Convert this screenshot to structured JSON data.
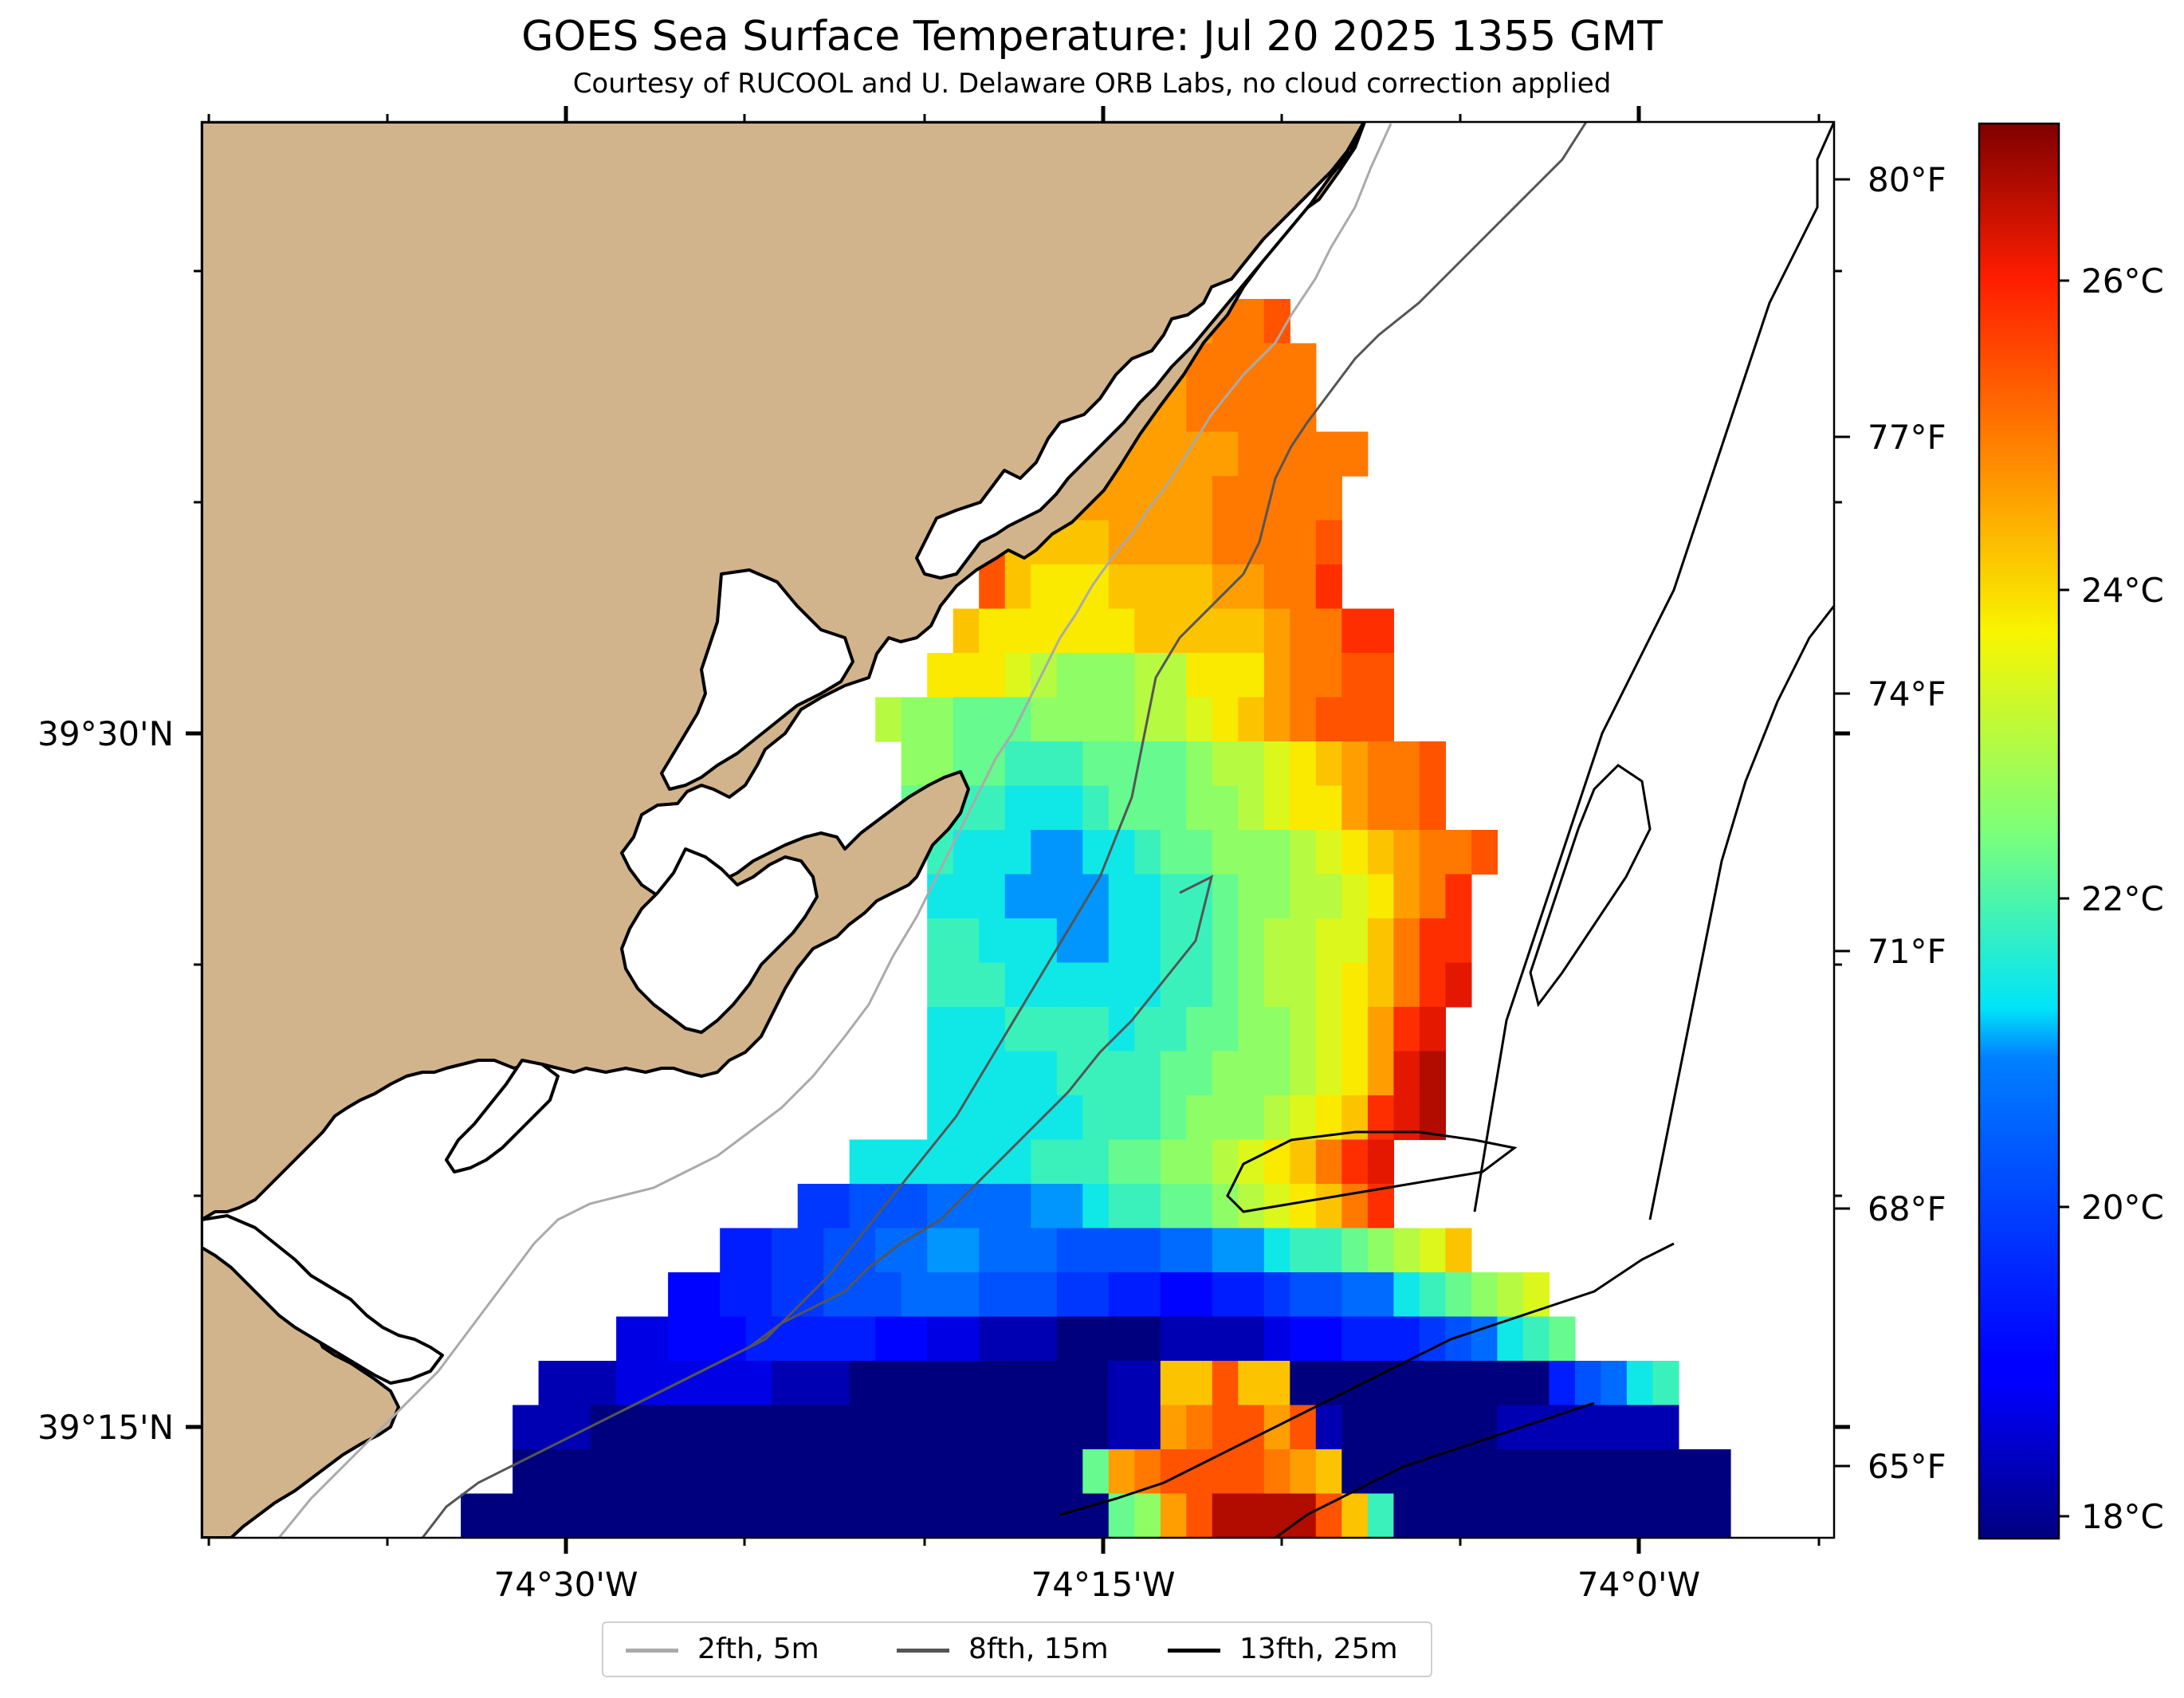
{
  "title": "GOES Sea Surface Temperature: Jul 20 2025 1355 GMT",
  "subtitle": "Courtesy of RUCOOL and U. Delaware ORB Labs, no cloud correction applied",
  "axes": {
    "x_ticks": [
      "74°30'W",
      "74°15'W",
      "74°0'W"
    ],
    "y_ticks": [
      "39°30'N",
      "39°15'N"
    ]
  },
  "colorbar": {
    "celsius_ticks": [
      "26°C",
      "24°C",
      "22°C",
      "20°C",
      "18°C"
    ],
    "fahrenheit_ticks": [
      "80°F",
      "77°F",
      "74°F",
      "71°F",
      "68°F",
      "65°F"
    ],
    "colormap": "jet",
    "range_c": [
      17.9,
      27.4
    ]
  },
  "legend": [
    {
      "label": "2fth, 5m",
      "color": "#aaaaaa"
    },
    {
      "label": "8fth, 15m",
      "color": "#555555"
    },
    {
      "label": "13fth, 25m",
      "color": "#000000"
    }
  ],
  "colors": {
    "land": "#d2b48c",
    "coastline": "#000000",
    "no_data": "#ffffff"
  },
  "sst_grid_c": [
    "............................................................",
    "............................................................",
    ".................................rr..........................",
    "..................................qrr........................",
    "...................................qrrrsst....................",
    "...................................qrrsssss...................",
    "..................................@orrsssss...................",
    ".................................qrrrrrrsssss................",
    "..............................Xqqrrrrrrsssss..................",
    "..............................tqqqqrrrrsssst..................",
    "..............................tqpppqqqqrrssu..................",
    "...............qtr...........qppppppqqqqqrssuu................",
    "...............mnm..........ppponmmmnnppprsstt................",
    "...............kl.........nmmlllmmmmnnopqrsttt................",
    "...........................mmllkkkllllmnnopqrsst..............",
    "...........................lkkkjjjklllmmnopprsst..............",
    "............................kjjjiijjkllmmmnopqrsst............",
    "............................jjjiiiijjkklmmnnoprsu.............",
    "............................kkjjjiijjkklmnnooqsuu.............",
    "............................kkkjjjjjjkklmnnopqsuv.............",
    "............................jjjkkkkjkkllmmnopruv..............",
    "............................jjjjjkkkkllmmmnoprvw..............",
    "............................jjjjjjkkklmmmnopquvw..............",
    ".........................jjjjjjjkkkllmmnopqsuv................",
    ".......................ffggghhhhiijkkllmnopqsu................",
    "....................eeffgghhiihhhgggghhiijkklmnoq..............",
    "..................ddeeffggghhhgggffeeddeefgghhjklmno...........",
    "................ccdddeeeeeddccbbbaaaabbbbcddeeefghjkl..........",
    ".............bbbccccccbbbaaaaaaaaaabbqqtqqaaaaaaaaaaeghjk......",
    "............bbbaaaaaaaaaaaaaaaaaaaabbrsttrtbaaaaaabbbbbbb......",
    "............aaaaaaaaaaaaaaaaaaaaaalrsttttsrqaaaaaaaaaaaaaaa....",
    "..........aaaaaaaaaaaaaaaaaaaaaaaaalmrtwwwwtqkaaaaaaaaaaaaa...."
  ]
}
